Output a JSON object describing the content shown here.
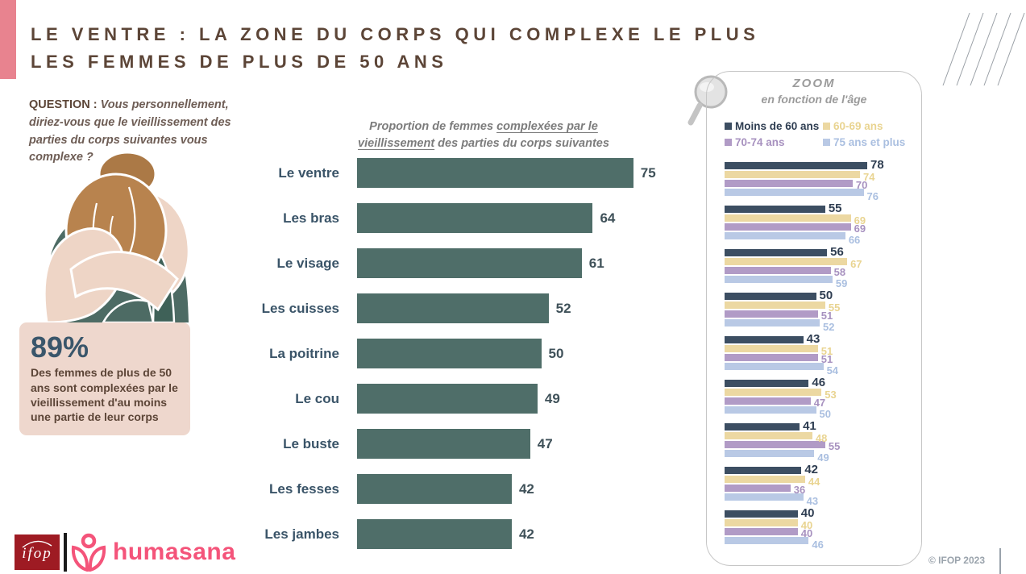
{
  "title": {
    "line1": "LE VENTRE : LA ZONE DU CORPS QUI COMPLEXE LE PLUS",
    "line2": "LES FEMMES DE PLUS DE 50 ANS"
  },
  "question": {
    "label": "QUESTION :",
    "text": "Vous personnellement, diriez-vous que le vieillissement des parties du corps suivantes vous complexe ?"
  },
  "stat_box": {
    "value": "89%",
    "text": "Des femmes de plus de 50 ans sont complexées par le vieillissement d'au moins une partie de leur corps"
  },
  "main_chart_title": {
    "pre": "Proportion de femmes ",
    "underline1": "complexées par le",
    "underline2": "vieillissement",
    "post": " des parties du corps suivantes"
  },
  "zoom_panel": {
    "title": "ZOOM",
    "subtitle": "en fonction de l'âge"
  },
  "footer": {
    "ifop_label": "ifop",
    "partner_label": "humasana",
    "copyright": "© IFOP 2023"
  },
  "colors": {
    "accent_pink": "#e8838f",
    "title_brown": "#5c4537",
    "main_bar": "#4f6e69",
    "stat_box_bg": "#eed7cd",
    "stat_value": "#3a566b",
    "humasana_pink": "#f4547a",
    "ifop_red": "#9e1b23"
  },
  "chart_data": [
    {
      "type": "bar",
      "orientation": "horizontal",
      "title": "Proportion de femmes complexées par le vieillissement des parties du corps suivantes",
      "categories": [
        "Le ventre",
        "Les bras",
        "Le visage",
        "Les cuisses",
        "La poitrine",
        "Le cou",
        "Le buste",
        "Les fesses",
        "Les jambes"
      ],
      "values": [
        75,
        64,
        61,
        52,
        50,
        49,
        47,
        42,
        42
      ],
      "bar_color": "#4f6e69",
      "xlim": [
        0,
        100
      ],
      "grid": false,
      "value_labels": true
    },
    {
      "type": "bar",
      "orientation": "horizontal",
      "title": "ZOOM en fonction de l'âge",
      "categories": [
        "Le ventre",
        "Les bras",
        "Le visage",
        "Les cuisses",
        "La poitrine",
        "Le cou",
        "Le buste",
        "Les fesses",
        "Les jambes"
      ],
      "series": [
        {
          "name": "Moins de 60 ans",
          "color": "#3c4e62",
          "label_color": "#2e3d51",
          "values": [
            78,
            55,
            56,
            50,
            43,
            46,
            41,
            42,
            40
          ]
        },
        {
          "name": "60-69 ans",
          "color": "#ecd8a2",
          "label_color": "#e9d491",
          "values": [
            74,
            69,
            67,
            55,
            51,
            53,
            48,
            44,
            40
          ]
        },
        {
          "name": "70-74 ans",
          "color": "#b19bc6",
          "label_color": "#a791bf",
          "values": [
            70,
            69,
            58,
            51,
            51,
            47,
            55,
            36,
            40
          ]
        },
        {
          "name": "75 ans et plus",
          "color": "#b9c9e5",
          "label_color": "#aabfe0",
          "values": [
            76,
            66,
            59,
            52,
            54,
            50,
            49,
            43,
            46
          ]
        }
      ],
      "xlim": [
        0,
        100
      ],
      "grid": false,
      "legend_position": "top",
      "value_labels": true
    }
  ]
}
